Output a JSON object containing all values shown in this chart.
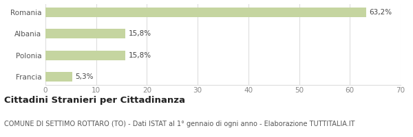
{
  "categories": [
    "Francia",
    "Polonia",
    "Albania",
    "Romania"
  ],
  "values": [
    5.3,
    15.8,
    15.8,
    63.2
  ],
  "labels": [
    "5,3%",
    "15,8%",
    "15,8%",
    "63,2%"
  ],
  "bar_color": "#c5d5a0",
  "bar_edge_color": "#c5d5a0",
  "xlim": [
    0,
    70
  ],
  "xticks": [
    0,
    10,
    20,
    30,
    40,
    50,
    60,
    70
  ],
  "title": "Cittadini Stranieri per Cittadinanza",
  "subtitle": "COMUNE DI SETTIMO ROTTARO (TO) - Dati ISTAT al 1° gennaio di ogni anno - Elaborazione TUTTITALIA.IT",
  "title_fontsize": 9.5,
  "subtitle_fontsize": 7,
  "label_fontsize": 7.5,
  "ytick_fontsize": 7.5,
  "xtick_fontsize": 7.5,
  "background_color": "#ffffff",
  "grid_color": "#dddddd",
  "bar_height": 0.45,
  "title_color": "#222222",
  "subtitle_color": "#555555",
  "label_color": "#444444",
  "ytick_color": "#555555",
  "xtick_color": "#888888"
}
